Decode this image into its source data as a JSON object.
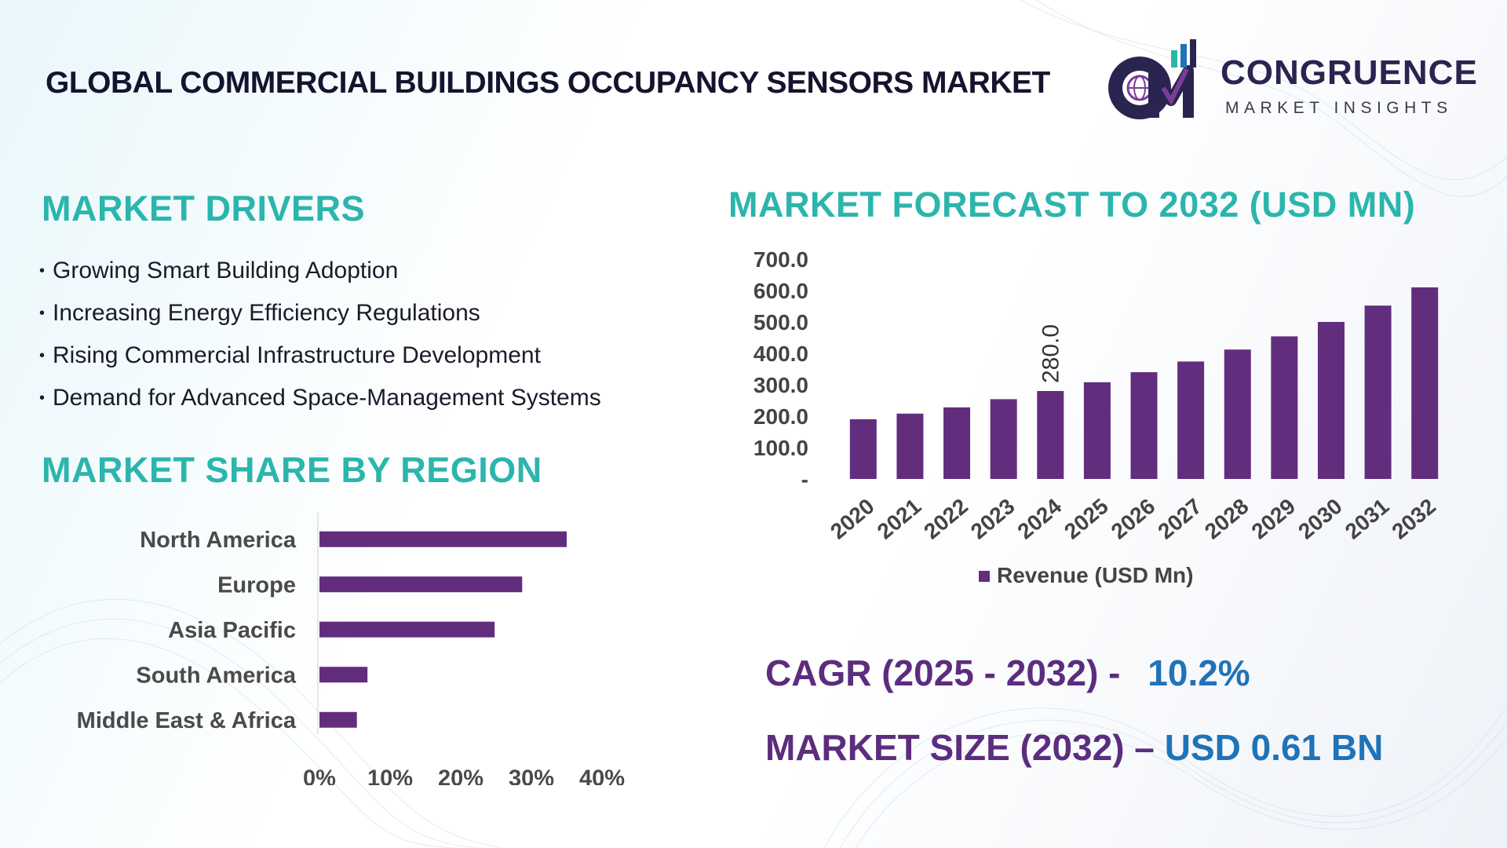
{
  "page": {
    "title": "GLOBAL COMMERCIAL BUILDINGS OCCUPANCY SENSORS MARKET",
    "logo": {
      "word": "CONGRUENCE",
      "sub": "MARKET INSIGHTS",
      "mark": "CM"
    },
    "drivers_heading": "MARKET DRIVERS",
    "drivers": [
      "Growing Smart Building Adoption",
      "Increasing Energy Efficiency Regulations",
      "Rising Commercial Infrastructure Development",
      "Demand for Advanced Space-Management Systems"
    ],
    "region_heading": "MARKET SHARE BY REGION",
    "forecast_heading": "MARKET FORECAST TO 2032 (USD MN)",
    "cagr_label": "CAGR (2025 - 2032) -",
    "cagr_value": "10.2%",
    "size_label": "MARKET SIZE (2032) –",
    "size_value": "USD 0.61 BN"
  },
  "colors": {
    "bar": "#632d7d",
    "heading": "#2bb5ad",
    "stat_label": "#5c2d7e",
    "stat_value": "#1f73b7",
    "axis_text": "#444444"
  },
  "chart_data": [
    {
      "type": "bar",
      "orientation": "vertical",
      "categories": [
        "2020",
        "2021",
        "2022",
        "2023",
        "2024",
        "2025",
        "2026",
        "2027",
        "2028",
        "2029",
        "2030",
        "2031",
        "2032"
      ],
      "series": [
        {
          "name": "Revenue (USD Mn)",
          "values": [
            190,
            208,
            228,
            254,
            280,
            308,
            340,
            374,
            412,
            454,
            500,
            552,
            610
          ]
        }
      ],
      "data_labels": [
        {
          "category": "2024",
          "text": "280.0"
        }
      ],
      "y_ticks": [
        "-",
        "100.0",
        "200.0",
        "300.0",
        "400.0",
        "500.0",
        "600.0",
        "700.0"
      ],
      "ylim": [
        0,
        700
      ],
      "legend": "bottom",
      "grid": false
    },
    {
      "type": "bar",
      "orientation": "horizontal",
      "categories": [
        "North America",
        "Europe",
        "Asia Pacific",
        "South America",
        "Middle East & Africa"
      ],
      "values": [
        35,
        28.7,
        24.8,
        6.8,
        5.3
      ],
      "x_ticks": [
        "0%",
        "10%",
        "20%",
        "30%",
        "40%"
      ],
      "xlim": [
        0,
        40
      ],
      "grid": false
    }
  ]
}
